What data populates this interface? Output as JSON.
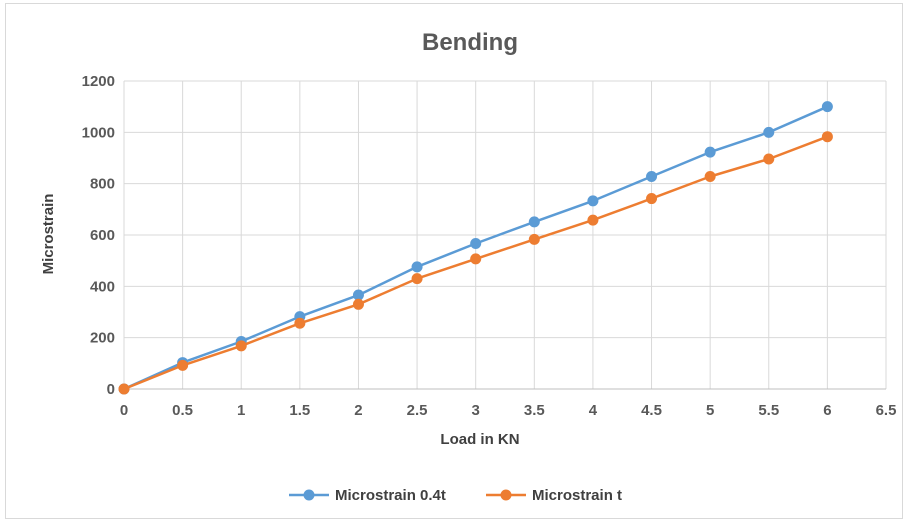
{
  "chart_data": {
    "type": "line",
    "title": "Bending",
    "xlabel": "Load in KN",
    "ylabel": "Microstrain",
    "xlim": [
      0,
      6.5
    ],
    "ylim": [
      0,
      1200
    ],
    "x_ticks": [
      0,
      0.5,
      1,
      1.5,
      2,
      2.5,
      3,
      3.5,
      4,
      4.5,
      5,
      5.5,
      6,
      6.5
    ],
    "y_ticks": [
      0,
      200,
      400,
      600,
      800,
      1000,
      1200
    ],
    "x": [
      0,
      0.5,
      1,
      1.5,
      2,
      2.5,
      3,
      3.5,
      4,
      4.5,
      5,
      5.5,
      6
    ],
    "series": [
      {
        "name": "Microstrain 0.4t",
        "color": "#5b9bd5",
        "values": [
          0,
          103,
          185,
          282,
          366,
          476,
          567,
          651,
          733,
          828,
          923,
          1000,
          1100
        ]
      },
      {
        "name": "Microstrain t",
        "color": "#ed7d31",
        "values": [
          0,
          92,
          168,
          256,
          330,
          430,
          507,
          583,
          658,
          742,
          828,
          896,
          983
        ]
      }
    ],
    "grid": true,
    "legend_position": "bottom"
  }
}
